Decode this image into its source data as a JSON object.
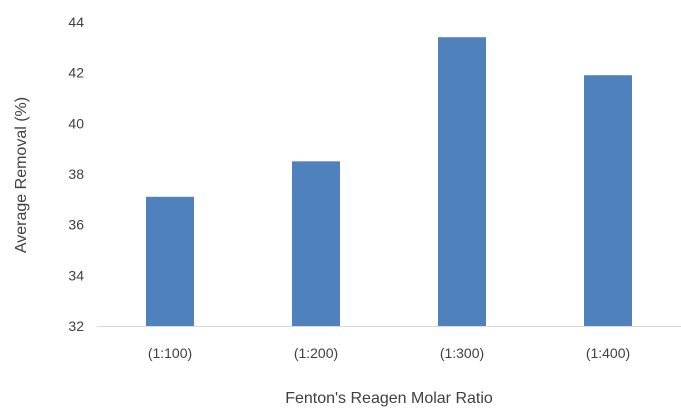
{
  "chart_data": {
    "type": "bar",
    "title": "",
    "xlabel": "Fenton's Reagen Molar  Ratio",
    "ylabel": "Average Removal (%)",
    "categories": [
      "(1:100)",
      "(1:200)",
      "(1:300)",
      "(1:400)"
    ],
    "values": [
      37.1,
      38.5,
      43.4,
      41.9
    ],
    "ylim": [
      32,
      44
    ],
    "yticks": [
      "32",
      "34",
      "36",
      "38",
      "40",
      "42",
      "44"
    ],
    "grid": false,
    "legend": "none",
    "bar_color": "#4f81bd",
    "axis_color": "#d9d9d9",
    "text_color": "#404040"
  }
}
